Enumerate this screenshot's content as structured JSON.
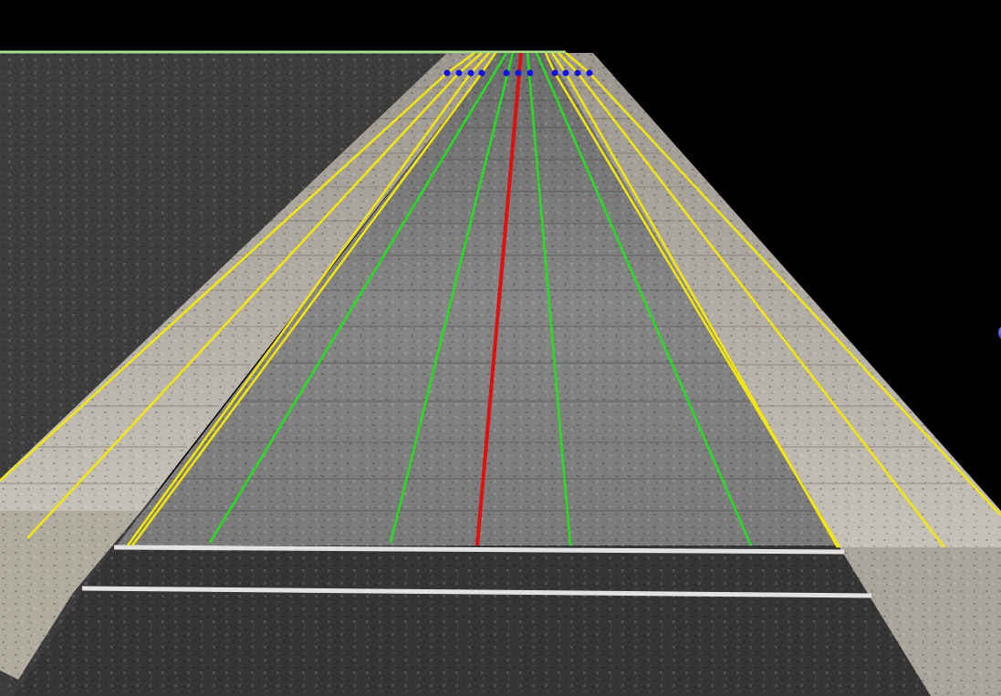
{
  "scene": {
    "colors": {
      "background": "#000000",
      "asphalt": "#3c3c3c",
      "asphalt_dark": "#2e2e2e",
      "sidewalk": "#b9b4aa",
      "sidewalk_dark": "#8f8a80",
      "road_surface": "#7d7d7d",
      "road_surface_dark": "#5a5a5a",
      "center_line": "#e01010",
      "lane_line": "#22e01e",
      "boundary_line": "#f5e60a",
      "lane_node": "#1010e8",
      "paint_white": "#e2e2e2",
      "horizon_line": "#a8e08a"
    },
    "icons": [
      "lane-node-marker",
      "edge-orb-marker"
    ]
  }
}
